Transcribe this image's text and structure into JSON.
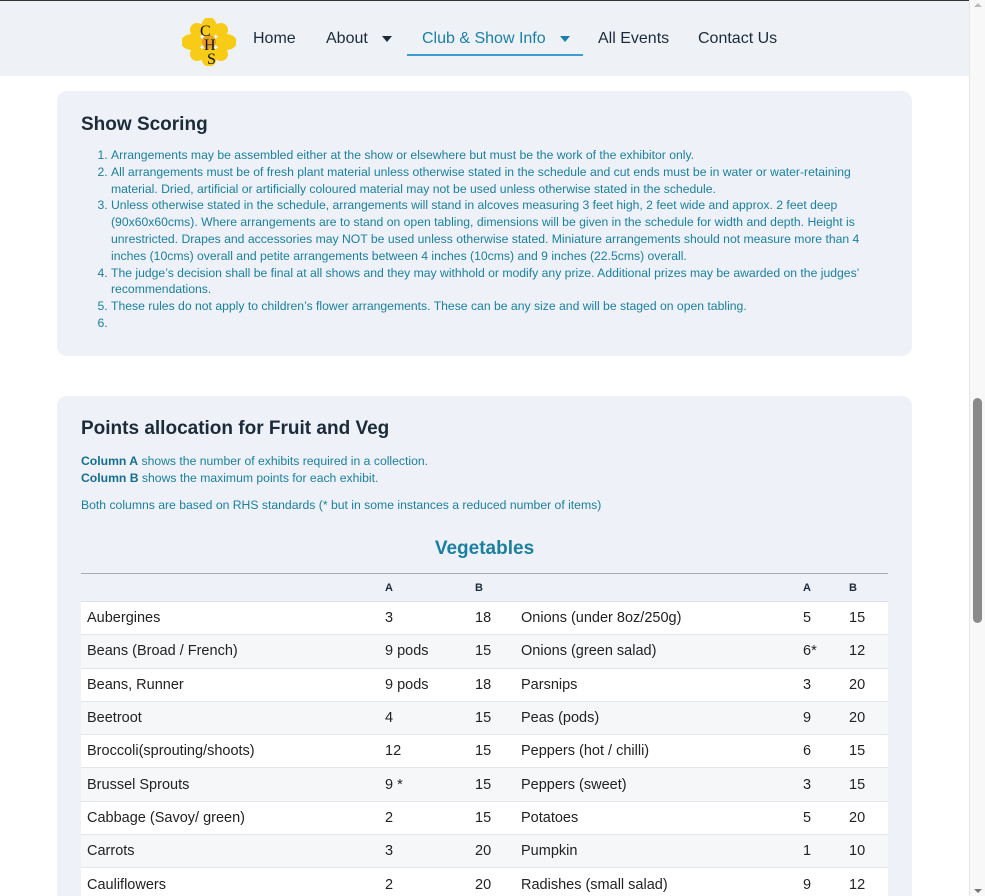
{
  "nav": {
    "logo_text": "CHS",
    "items": [
      {
        "label": "Home"
      },
      {
        "label": "About",
        "has_dropdown": true
      },
      {
        "label": "Club & Show Info",
        "has_dropdown": true,
        "active": true
      },
      {
        "label": "All Events"
      },
      {
        "label": "Contact Us"
      }
    ]
  },
  "scoring": {
    "title": "Show Scoring",
    "rules": [
      "Arrangements may be assembled either at the show or elsewhere but must be the work of the exhibitor only.",
      "All arrangements must be of fresh plant material unless otherwise stated in the schedule and cut ends must be in water or water-retaining material. Dried, artificial or artificially coloured material may not be used unless otherwise stated in the schedule.",
      "Unless otherwise stated in the schedule, arrangements will stand in alcoves measuring 3 feet high, 2 feet wide and approx. 2 feet deep (90x60x60cms). Where arrangements are to stand on open tabling, dimensions will be given in the schedule for width and depth.  Height is unrestricted. Drapes and accessories may NOT be used unless otherwise stated. Miniature arrangements should not measure more than 4 inches (10cms) overall and petite arrangements between 4 inches (10cms) and 9 inches (22.5cms) overall.",
      "The judge’s decision shall be final at all shows and they may withhold or modify any prize. Additional prizes may be awarded on the judges’ recommendations.",
      "These rules do not apply to children’s flower arrangements.  These can be any size and will be staged on open tabling.",
      ""
    ]
  },
  "points": {
    "title": "Points allocation for Fruit and Veg",
    "col_a_label": "Column A",
    "col_a_text": " shows the number of exhibits required in a collection.",
    "col_b_label": "Column B",
    "col_b_text": " shows the maximum points for each exhibit.",
    "note": "Both columns are based on RHS standards (* but in some instances a reduced number of items)",
    "vegetables_title": "Vegetables",
    "headers": [
      "",
      "A",
      "B",
      "",
      "A",
      "B"
    ],
    "rows": [
      [
        "Aubergines",
        "3",
        "18",
        "Onions (under 8oz/250g)",
        "5",
        "15"
      ],
      [
        "Beans (Broad / French)",
        "9 pods",
        "15",
        "Onions (green salad)",
        "6*",
        "12"
      ],
      [
        "Beans, Runner",
        "9 pods",
        "18",
        "Parsnips",
        "3",
        "20"
      ],
      [
        "Beetroot",
        "4",
        "15",
        "Peas (pods)",
        "9",
        "20"
      ],
      [
        "Broccoli(sprouting/shoots)",
        "12",
        "15",
        "Peppers (hot / chilli)",
        "6",
        "15"
      ],
      [
        "Brussel Sprouts",
        "9 *",
        "15",
        "Peppers (sweet)",
        "3",
        "15"
      ],
      [
        "Cabbage (Savoy/ green)",
        "2",
        "15",
        "Potatoes",
        "5",
        "20"
      ],
      [
        "Carrots",
        "3",
        "20",
        "Pumpkin",
        "1",
        "10"
      ],
      [
        "Cauliflowers",
        "2",
        "20",
        "Radishes (small salad)",
        "9",
        "12"
      ]
    ]
  },
  "colors": {
    "accent": "#1a7fa0",
    "heading": "#1c2b3a",
    "card_bg": "#eef2f8",
    "logo_yellow": "#f5c518"
  }
}
